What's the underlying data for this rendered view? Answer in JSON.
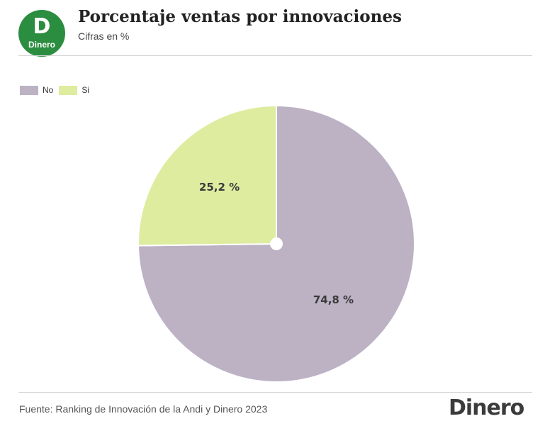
{
  "header": {
    "logo_letter": "D",
    "logo_word": "Dinero",
    "title": "Porcentaje ventas por innovaciones",
    "subtitle": "Cifras en %"
  },
  "footer": {
    "source": "Fuente: Ranking de Innovación de la Andi y Dinero 2023",
    "brand": "Dinero"
  },
  "colors": {
    "brand_green": "#2b8d3f",
    "no": "#bcb2c4",
    "si": "#deeca0"
  },
  "chart_data": {
    "type": "pie",
    "title": "Porcentaje ventas por innovaciones",
    "subtitle": "Cifras en %",
    "legend": "top-left",
    "slices": [
      {
        "name": "No",
        "value": 74.8,
        "label": "74,8 %",
        "color": "#bcb2c4"
      },
      {
        "name": "Si",
        "value": 25.2,
        "label": "25,2 %",
        "color": "#deeca0"
      }
    ]
  }
}
